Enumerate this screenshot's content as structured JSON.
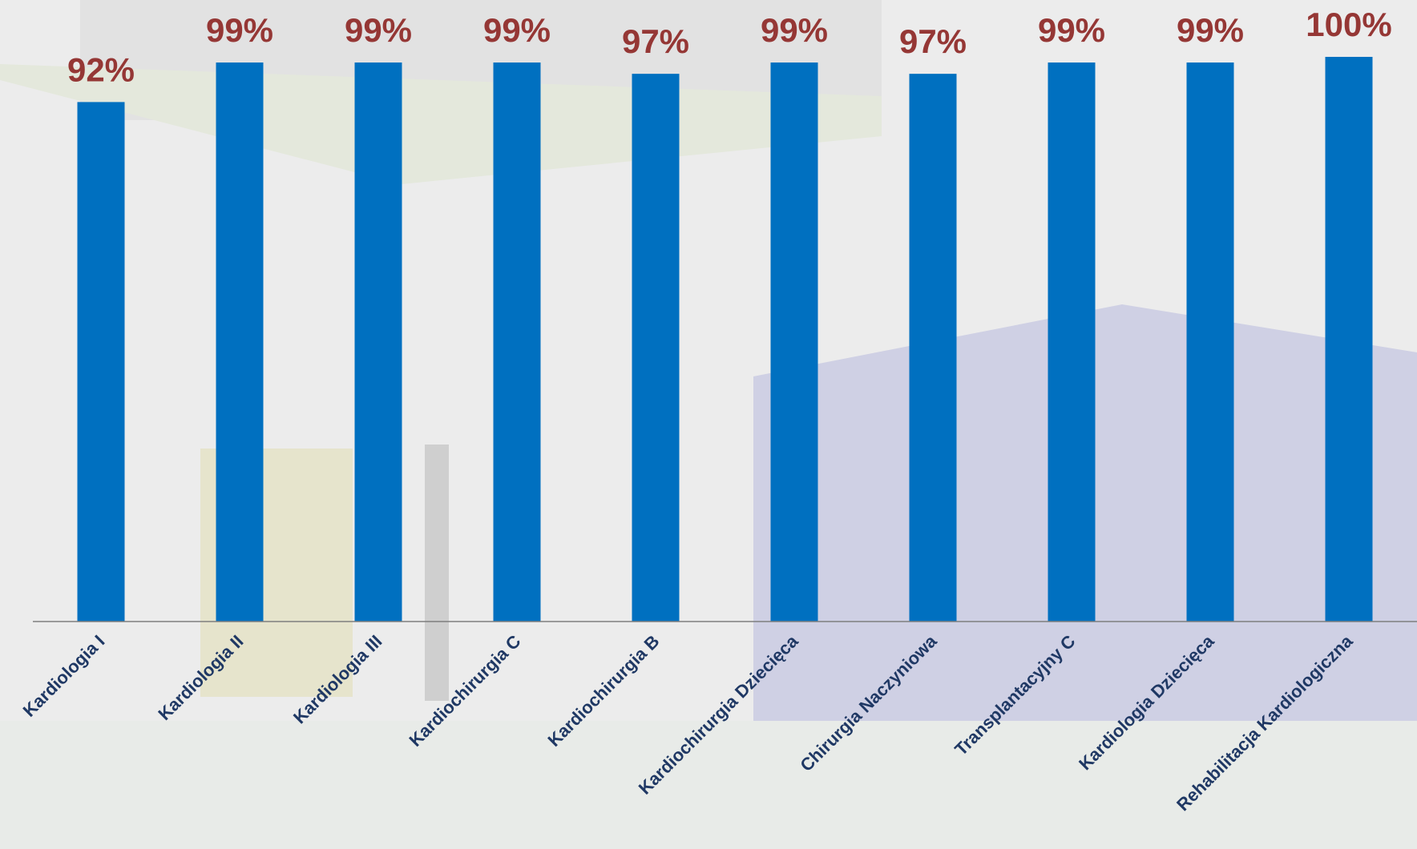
{
  "chart_data": {
    "type": "bar",
    "categories": [
      "Kardiologia I",
      "Kardiologia II",
      "Kardiologia III",
      "Kardiochirurgia C",
      "Kardiochirurgia B",
      "Kardiochirurgia Dziecięca",
      "Chirurgia Naczyniowa",
      "Transplantacyjny C",
      "Kardiologia Dziecięca",
      "Rehabilitacja Kardiologiczna"
    ],
    "values": [
      92,
      99,
      99,
      99,
      97,
      99,
      97,
      99,
      99,
      100
    ],
    "value_labels": [
      "92%",
      "99%",
      "99%",
      "99%",
      "97%",
      "99%",
      "97%",
      "99%",
      "99%",
      "100%"
    ],
    "color": "#0070c0",
    "ylim": [
      0,
      100
    ]
  }
}
